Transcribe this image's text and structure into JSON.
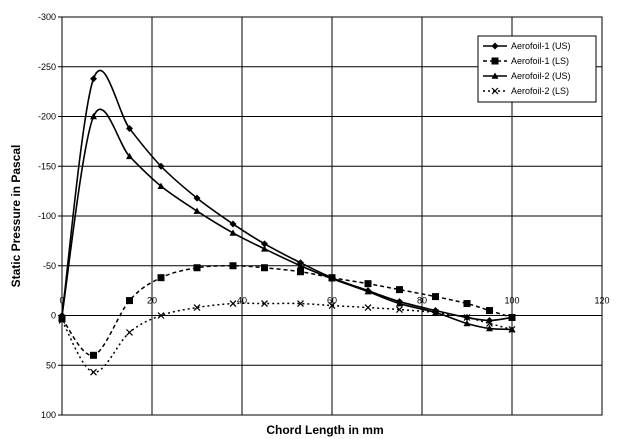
{
  "chart_data": {
    "type": "line",
    "xlabel": "Chord Length in mm",
    "ylabel": "Static Pressure in Pascal",
    "xlim": [
      0,
      120
    ],
    "ylim": [
      100,
      -300
    ],
    "y_axis_inverted": true,
    "x_ticks": [
      0,
      20,
      40,
      60,
      80,
      100,
      120
    ],
    "y_ticks": [
      -300,
      -250,
      -200,
      -150,
      -100,
      -50,
      0,
      50,
      100
    ],
    "grid": true,
    "legend_position": "top-right",
    "series": [
      {
        "name": "Aerofoil-1 (US)",
        "marker": "diamond",
        "line_style": "solid",
        "x": [
          0,
          7,
          15,
          22,
          30,
          38,
          45,
          53,
          60,
          68,
          75,
          83,
          90,
          95,
          100
        ],
        "y": [
          0,
          -238,
          -188,
          -150,
          -118,
          -92,
          -72,
          -53,
          -38,
          -25,
          -14,
          -5,
          2,
          5,
          2
        ]
      },
      {
        "name": "Aerofoil-1 (LS)",
        "marker": "square",
        "line_style": "dashed",
        "x": [
          0,
          7,
          15,
          22,
          30,
          38,
          45,
          53,
          60,
          68,
          75,
          83,
          90,
          95,
          100
        ],
        "y": [
          3,
          40,
          -15,
          -38,
          -48,
          -50,
          -48,
          -44,
          -38,
          -32,
          -26,
          -19,
          -12,
          -5,
          2
        ]
      },
      {
        "name": "Aerofoil-2 (US)",
        "marker": "triangle",
        "line_style": "solid",
        "x": [
          0,
          7,
          15,
          22,
          30,
          38,
          45,
          53,
          60,
          68,
          75,
          83,
          90,
          95,
          100
        ],
        "y": [
          0,
          -200,
          -160,
          -130,
          -105,
          -83,
          -67,
          -50,
          -37,
          -24,
          -12,
          -3,
          8,
          13,
          14
        ]
      },
      {
        "name": "Aerofoil-2 (LS)",
        "marker": "x",
        "line_style": "dotted",
        "x": [
          0,
          7,
          15,
          22,
          30,
          38,
          45,
          53,
          60,
          68,
          75,
          83,
          90,
          95,
          100
        ],
        "y": [
          5,
          57,
          17,
          0,
          -8,
          -12,
          -12,
          -12,
          -10,
          -8,
          -6,
          -3,
          2,
          8,
          14
        ]
      }
    ]
  }
}
